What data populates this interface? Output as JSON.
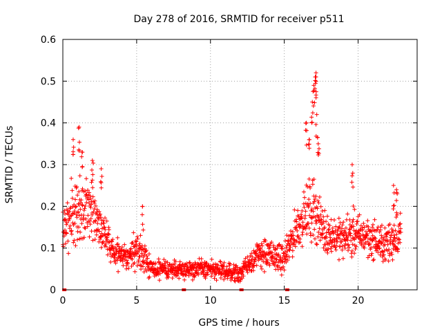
{
  "chart_data": {
    "type": "scatter",
    "title": "Day 278 of 2016, SRMTID for receiver p511",
    "xlabel": "GPS time / hours",
    "ylabel": "SRMTID / TECUs",
    "xlim": [
      0,
      24
    ],
    "ylim": [
      0,
      0.6
    ],
    "xticks": [
      0,
      5,
      10,
      15,
      20
    ],
    "xtick_labels": [
      "0",
      "5",
      "10",
      "15",
      "20"
    ],
    "yticks": [
      0,
      0.1,
      0.2,
      0.3,
      0.4,
      0.5,
      0.6
    ],
    "ytick_labels": [
      "0",
      "0.1",
      "0.2",
      "0.3",
      "0.4",
      "0.5",
      "0.6"
    ],
    "grid": true,
    "series": [
      {
        "name": "SRMTID",
        "color": "#ff0000",
        "marker": "plus",
        "profile": {
          "x": [
            0.0,
            0.5,
            1.0,
            1.5,
            2.0,
            2.5,
            3.0,
            3.5,
            4.0,
            4.5,
            5.0,
            5.5,
            6.0,
            6.5,
            7.0,
            7.5,
            8.0,
            8.5,
            9.0,
            9.5,
            10.0,
            10.5,
            11.0,
            11.5,
            12.0,
            12.5,
            13.0,
            13.5,
            14.0,
            14.5,
            15.0,
            15.5,
            16.0,
            16.5,
            17.0,
            17.5,
            18.0,
            18.5,
            19.0,
            19.5,
            20.0,
            20.5,
            21.0,
            21.5,
            22.0,
            22.5,
            22.9
          ],
          "y_center": [
            0.14,
            0.18,
            0.19,
            0.2,
            0.19,
            0.15,
            0.12,
            0.09,
            0.08,
            0.08,
            0.1,
            0.08,
            0.05,
            0.045,
            0.05,
            0.05,
            0.05,
            0.05,
            0.05,
            0.05,
            0.05,
            0.045,
            0.045,
            0.04,
            0.04,
            0.06,
            0.08,
            0.09,
            0.08,
            0.08,
            0.07,
            0.12,
            0.16,
            0.18,
            0.2,
            0.15,
            0.13,
            0.13,
            0.12,
            0.14,
            0.13,
            0.13,
            0.12,
            0.11,
            0.11,
            0.13,
            0.14
          ],
          "y_spread": [
            0.05,
            0.07,
            0.08,
            0.08,
            0.06,
            0.04,
            0.035,
            0.03,
            0.03,
            0.03,
            0.04,
            0.03,
            0.02,
            0.02,
            0.02,
            0.02,
            0.02,
            0.02,
            0.02,
            0.02,
            0.02,
            0.02,
            0.02,
            0.02,
            0.02,
            0.025,
            0.03,
            0.035,
            0.035,
            0.03,
            0.03,
            0.04,
            0.05,
            0.06,
            0.07,
            0.05,
            0.04,
            0.04,
            0.04,
            0.05,
            0.045,
            0.04,
            0.04,
            0.04,
            0.04,
            0.05,
            0.05
          ]
        },
        "peaks": [
          {
            "x": 0.7,
            "y": 0.36
          },
          {
            "x": 1.1,
            "y": 0.39
          },
          {
            "x": 1.3,
            "y": 0.33
          },
          {
            "x": 2.0,
            "y": 0.31
          },
          {
            "x": 2.6,
            "y": 0.29
          },
          {
            "x": 5.4,
            "y": 0.2
          },
          {
            "x": 16.5,
            "y": 0.4
          },
          {
            "x": 16.7,
            "y": 0.36
          },
          {
            "x": 16.9,
            "y": 0.45
          },
          {
            "x": 17.0,
            "y": 0.49
          },
          {
            "x": 17.1,
            "y": 0.51
          },
          {
            "x": 17.15,
            "y": 0.52
          },
          {
            "x": 17.2,
            "y": 0.42
          },
          {
            "x": 17.3,
            "y": 0.35
          },
          {
            "x": 19.6,
            "y": 0.3
          },
          {
            "x": 22.4,
            "y": 0.25
          },
          {
            "x": 22.6,
            "y": 0.24
          }
        ],
        "baseline_marks": [
          0.1,
          8.2,
          12.1,
          15.2
        ]
      }
    ]
  }
}
